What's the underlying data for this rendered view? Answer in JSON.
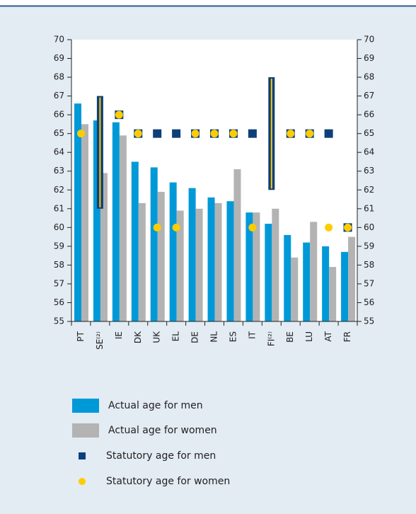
{
  "chart_data": {
    "type": "bar",
    "categories": [
      "PT",
      "SE⁽²⁾",
      "IE",
      "DK",
      "UK",
      "EL",
      "DE",
      "NL",
      "ES",
      "IT",
      "FI⁽²⁾",
      "BE",
      "LU",
      "AT",
      "FR"
    ],
    "series": [
      {
        "name": "Actual age for men",
        "color": "#0099d8",
        "values": [
          66.6,
          65.7,
          65.6,
          63.5,
          63.2,
          62.4,
          62.1,
          61.6,
          61.4,
          60.8,
          60.2,
          59.6,
          59.2,
          59.0,
          58.7
        ]
      },
      {
        "name": "Actual age for women",
        "color": "#b3b3b3",
        "values": [
          65.5,
          62.9,
          64.9,
          61.3,
          61.9,
          60.9,
          61.0,
          61.3,
          63.1,
          60.8,
          61.0,
          58.4,
          60.3,
          57.9,
          59.5
        ]
      },
      {
        "name": "Statutory age for men",
        "color": "#0d3f7a",
        "values": [
          null,
          null,
          66,
          65,
          65,
          65,
          65,
          65,
          65,
          65,
          null,
          65,
          65,
          65,
          60
        ]
      },
      {
        "name": "Statutory age for women",
        "color": "#ffcc00",
        "values": [
          65,
          null,
          66,
          65,
          60,
          60,
          65,
          65,
          65,
          60,
          null,
          65,
          65,
          60,
          60
        ]
      }
    ],
    "statutory_range": {
      "low": [
        null,
        61,
        null,
        null,
        null,
        null,
        null,
        null,
        null,
        null,
        62,
        null,
        null,
        null,
        null
      ],
      "high": [
        null,
        67,
        null,
        null,
        null,
        null,
        null,
        null,
        null,
        null,
        68,
        null,
        null,
        null,
        null
      ]
    },
    "ylim": [
      55,
      70
    ],
    "yticks": [
      55,
      56,
      57,
      58,
      59,
      60,
      61,
      62,
      63,
      64,
      65,
      66,
      67,
      68,
      69,
      70
    ]
  }
}
